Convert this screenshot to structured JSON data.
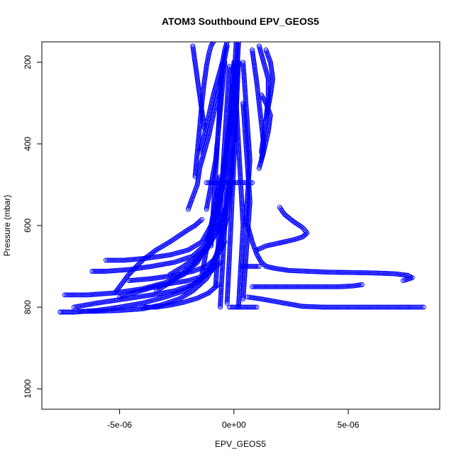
{
  "chart_data": {
    "type": "scatter",
    "title": "ATOM3 Southbound EPV_GEOS5",
    "xlabel": "EPV_GEOS5",
    "ylabel": "Pressure (mbar)",
    "xlim": [
      -8.4e-06,
      9e-06
    ],
    "ylim": [
      1050,
      150
    ],
    "y_reversed": true,
    "grid": false,
    "legend": "none",
    "marker": "open-circle",
    "color": "#0000ff",
    "x_ticks": [
      {
        "value": -5e-06,
        "label": "-5e-06"
      },
      {
        "value": 0,
        "label": "0e+00"
      },
      {
        "value": 5e-06,
        "label": "5e-06"
      }
    ],
    "y_ticks": [
      {
        "value": 200,
        "label": "200"
      },
      {
        "value": 400,
        "label": "400"
      },
      {
        "value": 600,
        "label": "600"
      },
      {
        "value": 800,
        "label": "800"
      },
      {
        "value": 1000,
        "label": "1000"
      }
    ],
    "series": [
      {
        "x": [
          -7.6e-06,
          -7e-06,
          -6e-06,
          -5e-06,
          -4e-06,
          -3e-06,
          -2.2e-06,
          -1.5e-06,
          -1e-06,
          -6e-07,
          -3e-07,
          -1e-07,
          0.0,
          1e-07,
          2e-07
        ],
        "y": [
          812,
          812,
          808,
          800,
          790,
          775,
          760,
          735,
          700,
          650,
          580,
          480,
          360,
          250,
          150
        ]
      },
      {
        "x": [
          -7.4e-06,
          -6.4e-06,
          -5.2e-06,
          -4e-06,
          -3e-06,
          -2.2e-06,
          -1.6e-06,
          -1.1e-06,
          -7e-07,
          -4e-07,
          -2e-07,
          0.0,
          1e-07
        ],
        "y": [
          770,
          770,
          765,
          755,
          740,
          720,
          690,
          640,
          570,
          470,
          360,
          250,
          150
        ]
      },
      {
        "x": [
          -7e-06,
          -6e-06,
          -4.8e-06,
          -3.6e-06,
          -2.6e-06,
          -1.8e-06,
          -1.2e-06,
          -8e-07,
          -5e-07,
          -2e-07,
          0.0,
          2e-07
        ],
        "y": [
          800,
          790,
          780,
          770,
          760,
          745,
          720,
          680,
          610,
          500,
          380,
          150
        ]
      },
      {
        "x": [
          -6.2e-06,
          -5.6e-06,
          -4.6e-06,
          -3.6e-06,
          -2.6e-06,
          -1.8e-06,
          -1.3e-06,
          -9e-07,
          -6e-07,
          -3e-07,
          0.0
        ],
        "y": [
          712,
          712,
          708,
          700,
          690,
          675,
          650,
          600,
          520,
          400,
          250
        ]
      },
      {
        "x": [
          -5.6e-06,
          -4.8e-06,
          -3.8e-06,
          -2.8e-06,
          -2e-06,
          -1.4e-06,
          -1e-06,
          -7e-07,
          -4e-07,
          -1e-07
        ],
        "y": [
          685,
          685,
          680,
          672,
          660,
          640,
          600,
          540,
          450,
          320
        ]
      },
      {
        "x": [
          -6.8e-06,
          -6e-06,
          -5e-06,
          -4e-06,
          -3.2e-06,
          -2.4e-06,
          -1.8e-06,
          -1.2e-06,
          -8e-07
        ],
        "y": [
          810,
          810,
          808,
          804,
          795,
          780,
          760,
          730,
          690
        ]
      },
      {
        "x": [
          -5e-06,
          -4.4e-06,
          -3.6e-06,
          -2.8e-06,
          -2e-06,
          -1.4e-06,
          -1e-06,
          -6e-07
        ],
        "y": [
          775,
          765,
          752,
          742,
          735,
          725,
          712,
          690
        ]
      },
      {
        "x": [
          -4.6e-06,
          -3.6e-06,
          -2.6e-06,
          -1.8e-06,
          -1.2e-06,
          -8e-07,
          -4e-07
        ],
        "y": [
          735,
          730,
          722,
          712,
          700,
          680,
          640
        ]
      },
      {
        "x": [
          -4e-06,
          -3.4e-06,
          -2.8e-06,
          -2.2e-06,
          -1.6e-06,
          -1.1e-06,
          -7e-07
        ],
        "y": [
          800,
          800,
          795,
          788,
          778,
          765,
          745
        ]
      },
      {
        "x": [
          -5.2e-06,
          -4.6e-06,
          -4e-06,
          -3.4e-06,
          -2.8e-06,
          -2.4e-06,
          -2e-06,
          -1.7e-06,
          -1.4e-06
        ],
        "y": [
          765,
          720,
          685,
          660,
          640,
          625,
          610,
          600,
          585
        ]
      },
      {
        "x": [
          -3.4e-06,
          -2.8e-06,
          -2.2e-06,
          -1.7e-06,
          -1.2e-06,
          -8e-07,
          -4e-07
        ],
        "y": [
          760,
          740,
          715,
          690,
          660,
          620,
          560
        ]
      },
      {
        "x": [
          -2.8e-06,
          -2.2e-06,
          -1.7e-06,
          -1.3e-06,
          -9e-07,
          -5e-07
        ],
        "y": [
          720,
          700,
          680,
          660,
          630,
          590
        ]
      },
      {
        "x": [
          -2e-06,
          -1.8e-06,
          -1.6e-06,
          -1.5e-06,
          -1.3e-06,
          -1.1e-06,
          -9e-07,
          -7e-07,
          -5e-07,
          -3e-07
        ],
        "y": [
          560,
          530,
          500,
          460,
          420,
          380,
          330,
          280,
          220,
          160
        ]
      },
      {
        "x": [
          -1.7e-06,
          -1.6e-06,
          -1.5e-06,
          -1.4e-06,
          -1.3e-06,
          -1.2e-06,
          -1.1e-06,
          -1e-06,
          -9e-07
        ],
        "y": [
          480,
          420,
          360,
          300,
          250,
          210,
          180,
          160,
          150
        ]
      },
      {
        "x": [
          -1.8e-06,
          -1.7e-06,
          -1.6e-06,
          -1.5e-06,
          -1.4e-06,
          -1.3e-06
        ],
        "y": [
          160,
          200,
          240,
          280,
          320,
          360
        ]
      },
      {
        "x": [
          -1.5e-06,
          -1.3e-06,
          -1.1e-06,
          -9e-07,
          -7e-07,
          -5e-07,
          -4e-07,
          -3e-07
        ],
        "y": [
          420,
          380,
          330,
          280,
          240,
          200,
          170,
          150
        ]
      },
      {
        "x": [
          -1.2e-06,
          -1e-06,
          -8e-07,
          -7e-07,
          -6e-07,
          -5e-07,
          -4e-07
        ],
        "y": [
          560,
          500,
          440,
          380,
          320,
          260,
          200
        ]
      },
      {
        "x": [
          -8e-07,
          -7e-07,
          -6e-07,
          -5e-07,
          -4e-07,
          -3e-07,
          -2e-07
        ],
        "y": [
          750,
          660,
          570,
          480,
          390,
          300,
          210
        ]
      },
      {
        "x": [
          4e-07,
          5e-07,
          6e-07,
          7e-07,
          6e-07,
          5e-07,
          4e-07
        ],
        "y": [
          780,
          700,
          620,
          540,
          460,
          380,
          300
        ]
      },
      {
        "x": [
          8e-07,
          9e-07,
          1e-06,
          1.1e-06,
          1.2e-06,
          1.3e-06,
          1.2e-06
        ],
        "y": [
          170,
          210,
          250,
          300,
          350,
          400,
          440
        ]
      },
      {
        "x": [
          1.1e-06,
          1.3e-06,
          1.5e-06,
          1.5e-06,
          1.4e-06,
          1.3e-06,
          1.2e-06
        ],
        "y": [
          160,
          200,
          240,
          290,
          340,
          380,
          420
        ]
      },
      {
        "x": [
          1.4e-06,
          1.6e-06,
          1.7e-06,
          1.6e-06,
          1.5e-06,
          1.4e-06
        ],
        "y": [
          170,
          200,
          240,
          280,
          310,
          340
        ]
      },
      {
        "x": [
          1.2e-06,
          1.4e-06,
          1.6e-06,
          1.5e-06,
          1.3e-06,
          1.1e-06
        ],
        "y": [
          280,
          300,
          330,
          370,
          420,
          460
        ]
      },
      {
        "x": [
          6e-07,
          8e-07,
          1e-06,
          1.2e-06,
          1.4e-06,
          1.8e-06,
          2.4e-06,
          3.2e-06,
          4e-06,
          5e-06,
          6e-06,
          7e-06,
          7.6e-06,
          7.8e-06,
          7.4e-06
        ],
        "y": [
          600,
          640,
          670,
          690,
          700,
          705,
          710,
          712,
          714,
          715,
          716,
          718,
          722,
          728,
          735
        ]
      },
      {
        "x": [
          1e-06,
          1.4e-06,
          1.8e-06,
          2.2e-06,
          2.6e-06,
          3e-06,
          3.2e-06,
          3e-06,
          2.6e-06,
          2.2e-06,
          2e-06
        ],
        "y": [
          660,
          650,
          645,
          640,
          635,
          628,
          618,
          605,
          590,
          572,
          555
        ]
      },
      {
        "x": [
          8e-07,
          1.4e-06,
          2.2e-06,
          3e-06,
          3.8e-06,
          4.6e-06,
          5.2e-06,
          5.6e-06
        ],
        "y": [
          750,
          750,
          750,
          750,
          750,
          750,
          748,
          745
        ]
      },
      {
        "x": [
          6e-07,
          1.2e-06,
          1.8e-06,
          2.4e-06,
          3e-06,
          4e-06,
          5e-06,
          6e-06,
          7e-06,
          7.8e-06,
          8.3e-06
        ],
        "y": [
          775,
          780,
          786,
          792,
          798,
          800,
          800,
          800,
          800,
          800,
          800
        ]
      },
      {
        "x": [
          -2e-07,
          2e-07,
          6e-07,
          1e-06
        ],
        "y": [
          800,
          800,
          800,
          800
        ]
      },
      {
        "x": [
          3e-07,
          5e-07,
          7e-07,
          9e-07,
          1.1e-06
        ],
        "y": [
          700,
          700,
          700,
          700,
          700
        ]
      },
      {
        "x": [
          -1.2e-06,
          -8e-07,
          -4e-07,
          0.0,
          3e-07,
          6e-07,
          8e-07
        ],
        "y": [
          495,
          495,
          495,
          495,
          495,
          495,
          495
        ]
      },
      {
        "x": [
          -6e-07,
          -5e-07,
          -4e-07,
          -3e-07,
          -2e-07,
          -1e-07,
          0.0
        ],
        "y": [
          800,
          700,
          600,
          500,
          400,
          300,
          200
        ]
      },
      {
        "x": [
          2e-07,
          3e-07,
          4e-07,
          3e-07,
          2e-07,
          1e-07,
          0.0
        ],
        "y": [
          800,
          700,
          600,
          500,
          400,
          300,
          200
        ]
      },
      {
        "x": [
          -3e-07,
          -2e-07,
          -1e-07,
          0.0,
          1e-07,
          2e-07
        ],
        "y": [
          790,
          680,
          560,
          440,
          320,
          200
        ]
      },
      {
        "x": [
          5e-07,
          6e-07,
          7e-07,
          6e-07,
          5e-07,
          4e-07
        ],
        "y": [
          600,
          520,
          440,
          360,
          280,
          200
        ]
      },
      {
        "x": [
          -1e-06,
          -9e-07,
          -8e-07,
          -7e-07,
          -6e-07,
          -5e-07
        ],
        "y": [
          650,
          560,
          470,
          380,
          290,
          200
        ]
      },
      {
        "x": [
          -1.4e-06,
          -1.2e-06,
          -1e-06,
          -8e-07,
          -6e-07
        ],
        "y": [
          720,
          660,
          600,
          540,
          480
        ]
      }
    ]
  }
}
